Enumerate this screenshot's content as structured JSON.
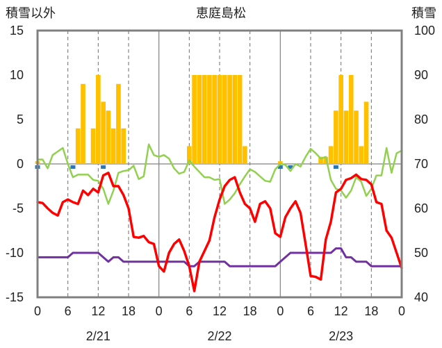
{
  "chart_data": {
    "type": "bar+line",
    "title": "恵庭島松",
    "y_left_label": "積雪以外",
    "y_right_label": "積雪",
    "y_left_range": [
      -15,
      15
    ],
    "y_left_ticks": [
      "15",
      "10",
      "5",
      "0",
      "-5",
      "-10",
      "-15"
    ],
    "y_right_range": [
      40,
      100
    ],
    "y_right_ticks": [
      "100",
      "90",
      "80",
      "70",
      "60",
      "50",
      "40"
    ],
    "x_hour_ticks": [
      "0",
      "6",
      "12",
      "18",
      "0",
      "6",
      "12",
      "18",
      "0",
      "6",
      "12",
      "18",
      "0"
    ],
    "x_date_labels": [
      "2/21",
      "2/22",
      "2/23"
    ],
    "grid": "dashed verticals at 6-hour marks, solid at day boundaries",
    "colors": {
      "bars": "#ffc000",
      "temperature": "#ff0000",
      "green_series": "#92d050",
      "purple_series": "#7030a0",
      "precip_marks": "#2e75b6",
      "axis": "#808080"
    },
    "bars": [
      {
        "hour": 0,
        "value": 0.3
      },
      {
        "hour": 8,
        "value": 4
      },
      {
        "hour": 9,
        "value": 9
      },
      {
        "hour": 11,
        "value": 4
      },
      {
        "hour": 12,
        "value": 10
      },
      {
        "hour": 13,
        "value": 7
      },
      {
        "hour": 14,
        "value": 6
      },
      {
        "hour": 15,
        "value": 4
      },
      {
        "hour": 16,
        "value": 9
      },
      {
        "hour": 17,
        "value": 4
      },
      {
        "hour": 30,
        "value": 2
      },
      {
        "hour": 31,
        "value": 10
      },
      {
        "hour": 32,
        "value": 10
      },
      {
        "hour": 33,
        "value": 10
      },
      {
        "hour": 34,
        "value": 10
      },
      {
        "hour": 35,
        "value": 10
      },
      {
        "hour": 36,
        "value": 10
      },
      {
        "hour": 37,
        "value": 10
      },
      {
        "hour": 38,
        "value": 10
      },
      {
        "hour": 39,
        "value": 10
      },
      {
        "hour": 40,
        "value": 10
      },
      {
        "hour": 41,
        "value": 2
      },
      {
        "hour": 48,
        "value": 0.3
      },
      {
        "hour": 56,
        "value": 0.8
      },
      {
        "hour": 57,
        "value": 0.8
      },
      {
        "hour": 58,
        "value": 2
      },
      {
        "hour": 59,
        "value": 6
      },
      {
        "hour": 60,
        "value": 10
      },
      {
        "hour": 61,
        "value": 6
      },
      {
        "hour": 62,
        "value": 10
      },
      {
        "hour": 63,
        "value": 6
      },
      {
        "hour": 64,
        "value": 2
      },
      {
        "hour": 65,
        "value": 7
      }
    ],
    "precip_marks": [
      0,
      7,
      13,
      48,
      50,
      59
    ],
    "series": [
      {
        "values": [
          [
            0,
            -4.3
          ],
          [
            1,
            -4.4
          ],
          [
            2,
            -5
          ],
          [
            3,
            -5.5
          ],
          [
            4,
            -5.8
          ],
          [
            5,
            -4.3
          ],
          [
            6,
            -4
          ],
          [
            7,
            -4.3
          ],
          [
            8,
            -4.5
          ],
          [
            9,
            -3
          ],
          [
            10,
            -3.5
          ],
          [
            11,
            -2.8
          ],
          [
            12,
            -3.2
          ],
          [
            13,
            -1.3
          ],
          [
            14,
            -1
          ],
          [
            15,
            -2.5
          ],
          [
            16,
            -2.5
          ],
          [
            17,
            -3.5
          ],
          [
            18,
            -5
          ],
          [
            19,
            -8.2
          ],
          [
            20,
            -8.3
          ],
          [
            21,
            -8.1
          ],
          [
            22,
            -8.8
          ],
          [
            23,
            -9
          ],
          [
            24,
            -11.5
          ],
          [
            25,
            -12.1
          ],
          [
            26,
            -10
          ],
          [
            27,
            -9
          ],
          [
            28,
            -8.5
          ],
          [
            29,
            -9.8
          ],
          [
            30,
            -11.5
          ],
          [
            31,
            -14.3
          ],
          [
            32,
            -11
          ],
          [
            33,
            -9.8
          ],
          [
            34,
            -8.6
          ],
          [
            35,
            -6
          ],
          [
            36,
            -4
          ],
          [
            37,
            -2.5
          ],
          [
            38,
            -1.8
          ],
          [
            39,
            -1.5
          ],
          [
            40,
            -3.2
          ],
          [
            41,
            -4.5
          ],
          [
            42,
            -5
          ],
          [
            43,
            -6.5
          ],
          [
            44,
            -4.5
          ],
          [
            45,
            -4.2
          ],
          [
            46,
            -5
          ],
          [
            47,
            -7.8
          ],
          [
            48,
            -8.2
          ],
          [
            49,
            -6
          ],
          [
            50,
            -5
          ],
          [
            51,
            -4.2
          ],
          [
            52,
            -5.5
          ],
          [
            53,
            -9
          ],
          [
            54,
            -12.6
          ],
          [
            55,
            -12.7
          ],
          [
            56,
            -13
          ],
          [
            57,
            -8.5
          ],
          [
            58,
            -6.5
          ],
          [
            59,
            -3.2
          ],
          [
            60,
            -2.8
          ],
          [
            61,
            -1.8
          ],
          [
            62,
            -1.6
          ],
          [
            63,
            -1.2
          ],
          [
            64,
            -1.7
          ],
          [
            65,
            -1.8
          ],
          [
            66,
            -2.3
          ],
          [
            67,
            -4.3
          ],
          [
            68,
            -4.5
          ],
          [
            69,
            -7.5
          ],
          [
            70,
            -8.3
          ],
          [
            71,
            -10
          ],
          [
            72,
            -11.7
          ]
        ]
      },
      {
        "values": [
          [
            0,
            0.5
          ],
          [
            1,
            0.5
          ],
          [
            2,
            -0.5
          ],
          [
            3,
            1
          ],
          [
            5,
            1.8
          ],
          [
            6,
            0
          ],
          [
            7,
            -1.5
          ],
          [
            8,
            -1.2
          ],
          [
            9,
            -1.2
          ],
          [
            10,
            -1.2
          ],
          [
            11,
            -1.8
          ],
          [
            12,
            -1.9
          ],
          [
            13,
            -2.8
          ],
          [
            14,
            -4.5
          ],
          [
            15,
            -3
          ],
          [
            16,
            -1
          ],
          [
            17,
            -0.8
          ],
          [
            18,
            -0.7
          ],
          [
            19,
            -0.2
          ],
          [
            20,
            -1.7
          ],
          [
            21,
            -1.4
          ],
          [
            22,
            2.2
          ],
          [
            23,
            1
          ],
          [
            24,
            0.8
          ],
          [
            25,
            1
          ],
          [
            26,
            0.6
          ],
          [
            27,
            -0.5
          ],
          [
            28,
            -1.1
          ],
          [
            29,
            -0.9
          ],
          [
            30,
            0.4
          ],
          [
            31,
            -0.3
          ],
          [
            32,
            -0.9
          ],
          [
            33,
            -1.5
          ],
          [
            34,
            -1.5
          ],
          [
            35,
            -1.8
          ],
          [
            36,
            -1.7
          ],
          [
            37,
            -4.5
          ],
          [
            38,
            -4
          ],
          [
            39,
            -3.3
          ],
          [
            40,
            -2.3
          ],
          [
            41,
            -1.4
          ],
          [
            42,
            -0.6
          ],
          [
            43,
            -0.9
          ],
          [
            44,
            -1.4
          ],
          [
            45,
            -1.9
          ],
          [
            46,
            -2
          ],
          [
            47,
            -0.6
          ],
          [
            48,
            0
          ],
          [
            49,
            -0.1
          ],
          [
            50,
            -0.8
          ],
          [
            51,
            0
          ],
          [
            52,
            -0.3
          ],
          [
            53,
            0.8
          ],
          [
            54,
            1.7
          ],
          [
            55,
            1.2
          ],
          [
            56,
            0.6
          ],
          [
            57,
            0.8
          ],
          [
            58,
            -1.8
          ],
          [
            59,
            -2.8
          ],
          [
            60,
            -3
          ],
          [
            61,
            -3.8
          ],
          [
            62,
            -3
          ],
          [
            63,
            -1.5
          ],
          [
            64,
            -2
          ],
          [
            65,
            -3.6
          ],
          [
            66,
            -2.8
          ],
          [
            67,
            -1.3
          ],
          [
            68,
            -1.3
          ],
          [
            69,
            1.8
          ],
          [
            70,
            -1
          ],
          [
            71,
            1.2
          ],
          [
            72,
            1.5
          ]
        ]
      },
      {
        "values": [
          [
            0,
            -10.5
          ],
          [
            6,
            -10.5
          ],
          [
            7,
            -10
          ],
          [
            12,
            -10
          ],
          [
            13,
            -10.5
          ],
          [
            14,
            -11
          ],
          [
            15,
            -10.5
          ],
          [
            16,
            -10.5
          ],
          [
            17,
            -11
          ],
          [
            29,
            -11
          ],
          [
            30,
            -11.5
          ],
          [
            31,
            -11.5
          ],
          [
            32,
            -11
          ],
          [
            37,
            -11
          ],
          [
            38,
            -11.5
          ],
          [
            47,
            -11.5
          ],
          [
            48,
            -11
          ],
          [
            50,
            -10
          ],
          [
            58,
            -10
          ],
          [
            59,
            -9.5
          ],
          [
            60,
            -9.5
          ],
          [
            61,
            -10.5
          ],
          [
            62,
            -10.5
          ],
          [
            63,
            -11
          ],
          [
            65,
            -11
          ],
          [
            66,
            -11.5
          ],
          [
            72,
            -11.5
          ]
        ]
      }
    ]
  }
}
